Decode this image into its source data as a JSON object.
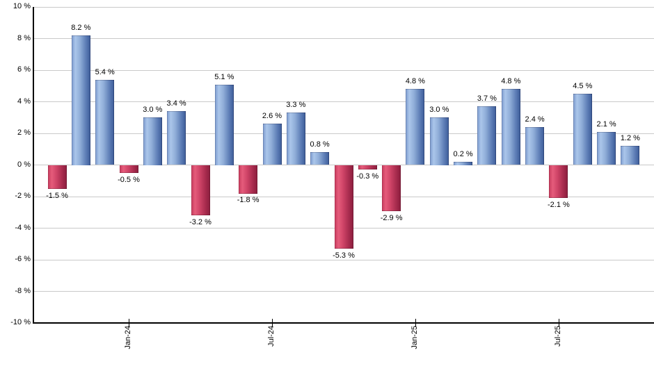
{
  "chart_data": {
    "type": "bar",
    "title": "",
    "values": [
      -1.5,
      8.2,
      5.4,
      -0.5,
      3.0,
      3.4,
      -3.2,
      5.1,
      -1.8,
      2.6,
      3.3,
      0.8,
      -5.3,
      -0.3,
      -2.9,
      4.8,
      3.0,
      0.2,
      3.7,
      4.8,
      2.4,
      -2.1,
      4.5,
      2.1,
      1.2
    ],
    "bar_labels": [
      "-1.5 %",
      "8.2 %",
      "5.4 %",
      "-0.5 %",
      "3.0 %",
      "3.4 %",
      "-3.2 %",
      "5.1 %",
      "-1.8 %",
      "2.6 %",
      "3.3 %",
      "0.8 %",
      "-5.3 %",
      "-0.3 %",
      "-2.9 %",
      "4.8 %",
      "3.0 %",
      "0.2 %",
      "3.7 %",
      "4.8 %",
      "2.4 %",
      "-2.1 %",
      "4.5 %",
      "2.1 %",
      "1.2 %"
    ],
    "x_tick_labels": [
      "Jan-24",
      "Jul-24",
      "Jan-25",
      "Jul-25"
    ],
    "x_tick_indices": [
      3,
      9,
      15,
      21
    ],
    "y_tick_labels": [
      "10 %",
      "8 %",
      "6 %",
      "4 %",
      "2 %",
      "0 %",
      "-2 %",
      "-4 %",
      "-6 %",
      "-8 %",
      "-10 %"
    ],
    "y_tick_values": [
      10,
      8,
      6,
      4,
      2,
      0,
      -2,
      -4,
      -6,
      -8,
      -10
    ],
    "ylim": [
      -10,
      10
    ],
    "grid": true,
    "legend": "none",
    "colors": {
      "positive": "#7b9ace",
      "positive_highlight": "#abc6ea",
      "positive_dark": "#3c5c98",
      "negative": "#c63a5d",
      "negative_highlight": "#e55c7b",
      "negative_dark": "#8b1e3e",
      "grid": "#c9c9c9",
      "axis": "#000000",
      "text": "#000000",
      "background": "#ffffff"
    }
  }
}
